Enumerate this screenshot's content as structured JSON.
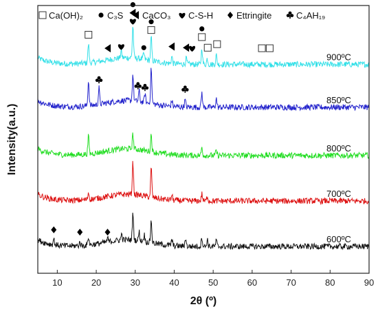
{
  "chart_data": {
    "type": "line",
    "xlabel": "2θ (º)",
    "ylabel": "Intensity(a.u.)",
    "xlim": [
      5,
      90
    ],
    "x_ticks": [
      10,
      20,
      30,
      40,
      50,
      60,
      70,
      80,
      90
    ],
    "legend": [
      {
        "symbol": "square",
        "label": "Ca(OH)₂"
      },
      {
        "symbol": "circle",
        "label": "C₃S"
      },
      {
        "symbol": "triangle-left",
        "label": "CaCO₃"
      },
      {
        "symbol": "heart",
        "label": "C-S-H"
      },
      {
        "symbol": "diamond",
        "label": "Ettringite"
      },
      {
        "symbol": "club",
        "label": "C₄AH₁₉"
      }
    ],
    "legend_placement": "top",
    "grid": false,
    "series": [
      {
        "name": "900ºC",
        "color": "#33e0e8",
        "baseline": 0.78,
        "peaks": [
          [
            18.0,
            0.32
          ],
          [
            26.4,
            0.12
          ],
          [
            29.4,
            0.55
          ],
          [
            32.2,
            0.1
          ],
          [
            34.1,
            0.4
          ],
          [
            39.4,
            0.12
          ],
          [
            43.1,
            0.1
          ],
          [
            47.1,
            0.28
          ],
          [
            48.5,
            0.1
          ],
          [
            50.8,
            0.16
          ]
        ],
        "markers": [
          {
            "x": 18.0,
            "symbols": [
              "square"
            ]
          },
          {
            "x": 23.0,
            "symbols": [
              "triangle-left"
            ]
          },
          {
            "x": 26.4,
            "symbols": [
              "heart"
            ]
          },
          {
            "x": 29.4,
            "symbols": [
              "circle",
              "triangle-left",
              "heart"
            ]
          },
          {
            "x": 32.2,
            "symbols": [
              "circle"
            ]
          },
          {
            "x": 34.1,
            "symbols": [
              "circle",
              "square"
            ]
          },
          {
            "x": 39.4,
            "symbols": [
              "triangle-left"
            ]
          },
          {
            "x": 43.1,
            "symbols": [
              "triangle-left"
            ]
          },
          {
            "x": 44.6,
            "symbols": [
              "heart"
            ]
          },
          {
            "x": 47.1,
            "symbols": [
              "circle",
              "square"
            ]
          },
          {
            "x": 48.6,
            "symbols": [
              "square"
            ]
          },
          {
            "x": 51.0,
            "symbols": [
              "square"
            ]
          },
          {
            "x": 62.5,
            "symbols": [
              "square"
            ]
          },
          {
            "x": 64.5,
            "symbols": [
              "square"
            ]
          }
        ]
      },
      {
        "name": "850ºC",
        "color": "#2222cc",
        "baseline": 0.62,
        "peaks": [
          [
            18.0,
            0.42
          ],
          [
            20.7,
            0.28
          ],
          [
            29.4,
            0.45
          ],
          [
            31.0,
            0.18
          ],
          [
            32.5,
            0.15
          ],
          [
            34.1,
            0.6
          ],
          [
            39.4,
            0.1
          ],
          [
            42.8,
            0.12
          ],
          [
            47.1,
            0.25
          ],
          [
            50.8,
            0.15
          ]
        ],
        "markers": [
          {
            "x": 20.7,
            "symbols": [
              "club"
            ]
          },
          {
            "x": 30.7,
            "symbols": [
              "club"
            ]
          },
          {
            "x": 32.5,
            "symbols": [
              "club"
            ]
          },
          {
            "x": 42.8,
            "symbols": [
              "club"
            ]
          }
        ]
      },
      {
        "name": "800ºC",
        "color": "#22dd22",
        "baseline": 0.44,
        "peaks": [
          [
            18.0,
            0.3
          ],
          [
            29.4,
            0.26
          ],
          [
            34.1,
            0.3
          ],
          [
            47.1,
            0.14
          ],
          [
            50.8,
            0.08
          ]
        ],
        "markers": []
      },
      {
        "name": "700ºC",
        "color": "#dd1111",
        "baseline": 0.27,
        "peaks": [
          [
            18.0,
            0.12
          ],
          [
            29.4,
            0.55
          ],
          [
            34.1,
            0.5
          ],
          [
            39.4,
            0.08
          ],
          [
            47.1,
            0.12
          ],
          [
            48.5,
            0.08
          ]
        ],
        "markers": []
      },
      {
        "name": "600ºC",
        "color": "#111111",
        "baseline": 0.1,
        "peaks": [
          [
            9.1,
            0.1
          ],
          [
            15.8,
            0.06
          ],
          [
            18.0,
            0.14
          ],
          [
            22.9,
            0.06
          ],
          [
            26.5,
            0.1
          ],
          [
            29.4,
            0.45
          ],
          [
            31.0,
            0.15
          ],
          [
            32.3,
            0.12
          ],
          [
            34.1,
            0.38
          ],
          [
            39.4,
            0.1
          ],
          [
            42.9,
            0.14
          ],
          [
            47.1,
            0.16
          ],
          [
            48.5,
            0.12
          ],
          [
            50.8,
            0.1
          ]
        ],
        "markers": [
          {
            "x": 9.1,
            "symbols": [
              "diamond"
            ]
          },
          {
            "x": 15.8,
            "symbols": [
              "diamond"
            ]
          },
          {
            "x": 22.9,
            "symbols": [
              "diamond"
            ]
          }
        ]
      }
    ]
  }
}
